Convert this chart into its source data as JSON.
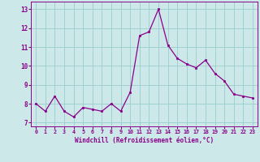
{
  "x": [
    0,
    1,
    2,
    3,
    4,
    5,
    6,
    7,
    8,
    9,
    10,
    11,
    12,
    13,
    14,
    15,
    16,
    17,
    18,
    19,
    20,
    21,
    22,
    23
  ],
  "y": [
    8.0,
    7.6,
    8.4,
    7.6,
    7.3,
    7.8,
    7.7,
    7.6,
    8.0,
    7.6,
    8.6,
    11.6,
    11.8,
    13.0,
    11.1,
    10.4,
    10.1,
    9.9,
    10.3,
    9.6,
    9.2,
    8.5,
    8.4,
    8.3
  ],
  "line_color": "#8B008B",
  "marker": ".",
  "marker_size": 3.5,
  "bg_color": "#cce8e8",
  "grid_color": "#99cccc",
  "xlabel": "Windchill (Refroidissement éolien,°C)",
  "xlabel_color": "#8B008B",
  "tick_color": "#8B008B",
  "ylim": [
    6.8,
    13.4
  ],
  "yticks": [
    7,
    8,
    9,
    10,
    11,
    12,
    13
  ],
  "xlim": [
    -0.5,
    23.5
  ],
  "xticks": [
    0,
    1,
    2,
    3,
    4,
    5,
    6,
    7,
    8,
    9,
    10,
    11,
    12,
    13,
    14,
    15,
    16,
    17,
    18,
    19,
    20,
    21,
    22,
    23
  ]
}
